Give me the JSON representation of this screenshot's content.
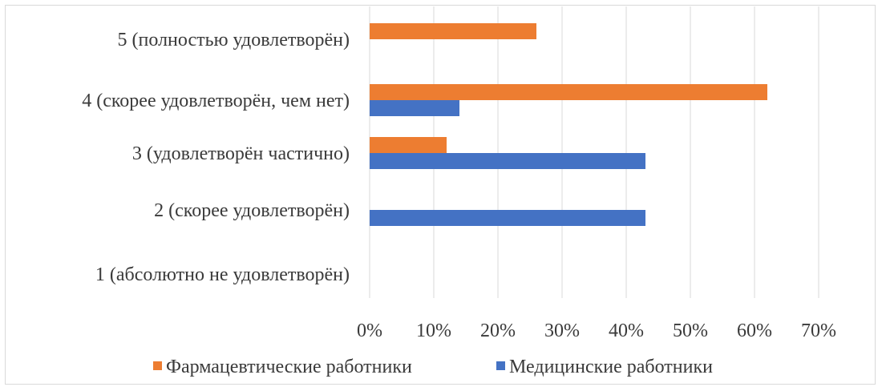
{
  "chart_data": {
    "type": "bar",
    "orientation": "horizontal",
    "categories": [
      "5 (полностью удовлетворён)",
      "4 (скорее удовлетворён, чем нет)",
      "3 (удовлетворён частично)",
      "2 (скорее удовлетворён)",
      "1 (абсолютно не удовлетворён)"
    ],
    "series": [
      {
        "name": "Фармацевтические работники",
        "color": "#ed7d31",
        "values": [
          26,
          62,
          12,
          0,
          0
        ]
      },
      {
        "name": "Медицинские работники",
        "color": "#4472c4",
        "values": [
          0,
          14,
          43,
          43,
          0
        ]
      }
    ],
    "xlim": [
      0,
      70
    ],
    "xticks": [
      0,
      10,
      20,
      30,
      40,
      50,
      60,
      70
    ],
    "xtick_labels": [
      "0%",
      "10%",
      "20%",
      "30%",
      "40%",
      "50%",
      "60%",
      "70%"
    ],
    "value_unit": "%",
    "grid": true,
    "legend_position": "bottom",
    "title": "",
    "xlabel": "",
    "ylabel": ""
  }
}
